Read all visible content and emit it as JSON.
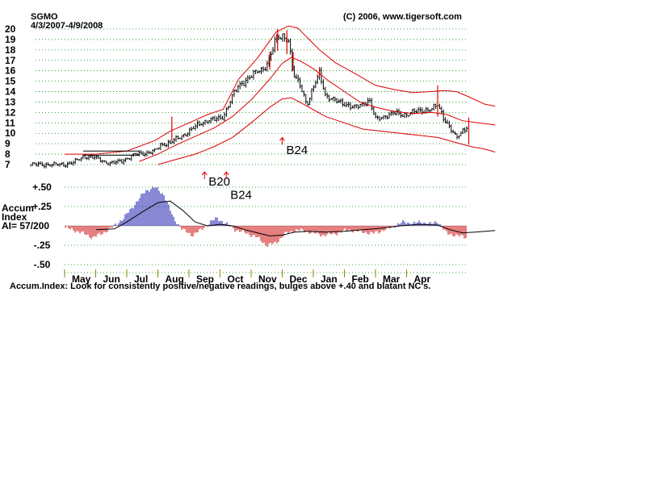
{
  "header": {
    "symbol": "SGMO",
    "date_range": "4/3/2007-4/9/2008",
    "copyright": "(C) 2006, www.tigersoft.com"
  },
  "chart_data": [
    {
      "type": "candlestick",
      "name_visible": false,
      "y_tick_labels": [
        "20",
        "19",
        "18",
        "17",
        "16",
        "15",
        "14",
        "13",
        "12",
        "11",
        "10",
        "9",
        "8",
        "7"
      ],
      "ylim": [
        7,
        20
      ],
      "x_tick_labels": [
        "May",
        "Jun",
        "Jul",
        "Aug",
        "Sep",
        "Oct",
        "Nov",
        "Dec",
        "Jan",
        "Feb",
        "Mar",
        "Apr"
      ],
      "grid": "dotted horizontal",
      "price_points": [
        {
          "m": 0.0,
          "v": 7.0
        },
        {
          "m": 0.3,
          "v": 7.2
        },
        {
          "m": 0.6,
          "v": 7.8
        },
        {
          "m": 0.9,
          "v": 7.7
        },
        {
          "m": 1.2,
          "v": 7.4
        },
        {
          "m": 1.5,
          "v": 7.1
        },
        {
          "m": 1.8,
          "v": 7.3
        },
        {
          "m": 2.0,
          "v": 7.6
        },
        {
          "m": 2.3,
          "v": 8.0
        },
        {
          "m": 2.6,
          "v": 8.1
        },
        {
          "m": 2.9,
          "v": 8.3
        },
        {
          "m": 3.1,
          "v": 8.9
        },
        {
          "m": 3.4,
          "v": 9.1
        },
        {
          "m": 3.7,
          "v": 9.6
        },
        {
          "m": 4.0,
          "v": 10.2
        },
        {
          "m": 4.3,
          "v": 10.8
        },
        {
          "m": 4.6,
          "v": 11.3
        },
        {
          "m": 4.9,
          "v": 11.3
        },
        {
          "m": 5.1,
          "v": 11.6
        },
        {
          "m": 5.4,
          "v": 13.6
        },
        {
          "m": 5.6,
          "v": 14.5
        },
        {
          "m": 5.9,
          "v": 15.3
        },
        {
          "m": 6.2,
          "v": 15.9
        },
        {
          "m": 6.4,
          "v": 16.2
        },
        {
          "m": 6.6,
          "v": 17.2
        },
        {
          "m": 6.8,
          "v": 19.0
        },
        {
          "m": 7.0,
          "v": 19.4
        },
        {
          "m": 7.2,
          "v": 19.0
        },
        {
          "m": 7.35,
          "v": 15.6
        },
        {
          "m": 7.6,
          "v": 14.5
        },
        {
          "m": 7.8,
          "v": 12.8
        },
        {
          "m": 8.0,
          "v": 14.3
        },
        {
          "m": 8.2,
          "v": 15.8
        },
        {
          "m": 8.4,
          "v": 13.6
        },
        {
          "m": 8.7,
          "v": 13.1
        },
        {
          "m": 9.0,
          "v": 12.9
        },
        {
          "m": 9.3,
          "v": 12.4
        },
        {
          "m": 9.5,
          "v": 12.7
        },
        {
          "m": 9.8,
          "v": 13.2
        },
        {
          "m": 10.0,
          "v": 11.3
        },
        {
          "m": 10.3,
          "v": 11.7
        },
        {
          "m": 10.6,
          "v": 11.9
        },
        {
          "m": 10.9,
          "v": 11.8
        },
        {
          "m": 11.2,
          "v": 12.0
        },
        {
          "m": 11.5,
          "v": 12.2
        },
        {
          "m": 11.8,
          "v": 12.3
        },
        {
          "m": 12.0,
          "v": 12.7
        },
        {
          "m": 12.2,
          "v": 11.5
        },
        {
          "m": 12.4,
          "v": 10.5
        },
        {
          "m": 12.6,
          "v": 9.5
        },
        {
          "m": 12.8,
          "v": 10.3
        },
        {
          "m": 13.0,
          "v": 10.8
        },
        {
          "m": 13.3,
          "v": 10.9
        },
        {
          "m": 13.6,
          "v": 10.7
        },
        {
          "m": 13.85,
          "v": 10.6
        }
      ],
      "upper_band": [
        {
          "m": 0.0,
          "v": 8.0
        },
        {
          "m": 1.0,
          "v": 8.0
        },
        {
          "m": 2.0,
          "v": 8.3
        },
        {
          "m": 2.9,
          "v": 9.3
        },
        {
          "m": 3.4,
          "v": 10.2
        },
        {
          "m": 4.0,
          "v": 11.0
        },
        {
          "m": 4.6,
          "v": 11.8
        },
        {
          "m": 5.1,
          "v": 12.3
        },
        {
          "m": 5.6,
          "v": 15.2
        },
        {
          "m": 6.2,
          "v": 17.2
        },
        {
          "m": 6.8,
          "v": 19.7
        },
        {
          "m": 7.2,
          "v": 20.3
        },
        {
          "m": 7.5,
          "v": 20.1
        },
        {
          "m": 7.8,
          "v": 19.2
        },
        {
          "m": 8.2,
          "v": 18.0
        },
        {
          "m": 8.7,
          "v": 16.8
        },
        {
          "m": 9.3,
          "v": 15.8
        },
        {
          "m": 10.0,
          "v": 14.6
        },
        {
          "m": 10.6,
          "v": 14.2
        },
        {
          "m": 11.2,
          "v": 13.9
        },
        {
          "m": 11.8,
          "v": 14.0
        },
        {
          "m": 12.2,
          "v": 14.1
        },
        {
          "m": 12.6,
          "v": 14.0
        },
        {
          "m": 13.0,
          "v": 13.5
        },
        {
          "m": 13.5,
          "v": 12.8
        },
        {
          "m": 13.85,
          "v": 12.6
        }
      ],
      "middle_band": [
        {
          "m": 2.4,
          "v": 7.3
        },
        {
          "m": 3.0,
          "v": 8.0
        },
        {
          "m": 3.6,
          "v": 8.9
        },
        {
          "m": 4.2,
          "v": 9.7
        },
        {
          "m": 4.8,
          "v": 10.5
        },
        {
          "m": 5.4,
          "v": 11.6
        },
        {
          "m": 6.0,
          "v": 13.2
        },
        {
          "m": 6.6,
          "v": 15.2
        },
        {
          "m": 7.0,
          "v": 16.7
        },
        {
          "m": 7.3,
          "v": 17.3
        },
        {
          "m": 7.6,
          "v": 16.9
        },
        {
          "m": 8.0,
          "v": 16.2
        },
        {
          "m": 8.5,
          "v": 15.0
        },
        {
          "m": 9.0,
          "v": 14.0
        },
        {
          "m": 9.5,
          "v": 13.0
        },
        {
          "m": 10.0,
          "v": 12.5
        },
        {
          "m": 10.6,
          "v": 12.1
        },
        {
          "m": 11.2,
          "v": 11.9
        },
        {
          "m": 11.8,
          "v": 12.0
        },
        {
          "m": 12.3,
          "v": 11.8
        },
        {
          "m": 12.8,
          "v": 11.2
        },
        {
          "m": 13.3,
          "v": 11.0
        },
        {
          "m": 13.85,
          "v": 10.8
        }
      ],
      "lower_band": [
        {
          "m": 3.0,
          "v": 7.0
        },
        {
          "m": 3.6,
          "v": 7.5
        },
        {
          "m": 4.2,
          "v": 8.0
        },
        {
          "m": 4.8,
          "v": 8.7
        },
        {
          "m": 5.4,
          "v": 9.6
        },
        {
          "m": 6.0,
          "v": 11.0
        },
        {
          "m": 6.6,
          "v": 12.5
        },
        {
          "m": 7.0,
          "v": 13.3
        },
        {
          "m": 7.3,
          "v": 13.4
        },
        {
          "m": 7.8,
          "v": 12.6
        },
        {
          "m": 8.4,
          "v": 11.6
        },
        {
          "m": 9.0,
          "v": 11.0
        },
        {
          "m": 9.6,
          "v": 10.4
        },
        {
          "m": 10.2,
          "v": 10.2
        },
        {
          "m": 10.8,
          "v": 10.0
        },
        {
          "m": 11.4,
          "v": 9.8
        },
        {
          "m": 12.0,
          "v": 9.6
        },
        {
          "m": 12.6,
          "v": 9.1
        },
        {
          "m": 13.1,
          "v": 8.7
        },
        {
          "m": 13.5,
          "v": 8.5
        },
        {
          "m": 13.85,
          "v": 8.2
        }
      ],
      "channel_upper": [
        {
          "m": 0.6,
          "v": 8.3
        },
        {
          "m": 2.4,
          "v": 8.3
        }
      ],
      "channel_lower": [
        {
          "m": 0.6,
          "v": 7.9
        },
        {
          "m": 2.4,
          "v": 7.9
        }
      ],
      "spikes": [
        {
          "m": 3.45,
          "low": 9.3,
          "high": 11.6
        },
        {
          "m": 6.6,
          "low": 16.1,
          "high": 17.8
        },
        {
          "m": 6.85,
          "low": 17.9,
          "high": 20.0
        },
        {
          "m": 7.15,
          "low": 17.6,
          "high": 19.9
        },
        {
          "m": 7.35,
          "low": 16.0,
          "high": 17.8
        },
        {
          "m": 8.2,
          "low": 15.4,
          "high": 16.3
        },
        {
          "m": 12.0,
          "low": 11.6,
          "high": 14.6
        },
        {
          "m": 13.0,
          "low": 8.9,
          "high": 11.5
        }
      ]
    },
    {
      "type": "bar",
      "name_visible": false,
      "y_tick_labels": [
        "+.50",
        "+.25",
        "-.25",
        "-.50"
      ],
      "ylim": [
        -0.5,
        0.5
      ],
      "label_lines": [
        "Accum",
        "Index",
        "AI= 57/200"
      ],
      "colors": {
        "positive": "#1111aa",
        "negative": "#cc0000",
        "line": "#000000"
      },
      "value_points": [
        {
          "m": 0.0,
          "v": -0.02
        },
        {
          "m": 0.5,
          "v": -0.08
        },
        {
          "m": 0.9,
          "v": -0.15
        },
        {
          "m": 1.2,
          "v": -0.1
        },
        {
          "m": 1.6,
          "v": 0.0
        },
        {
          "m": 1.9,
          "v": 0.1
        },
        {
          "m": 2.2,
          "v": 0.25
        },
        {
          "m": 2.6,
          "v": 0.45
        },
        {
          "m": 2.9,
          "v": 0.5
        },
        {
          "m": 3.2,
          "v": 0.4
        },
        {
          "m": 3.5,
          "v": 0.1
        },
        {
          "m": 3.8,
          "v": -0.05
        },
        {
          "m": 4.1,
          "v": -0.12
        },
        {
          "m": 4.4,
          "v": -0.05
        },
        {
          "m": 4.7,
          "v": 0.05
        },
        {
          "m": 4.9,
          "v": 0.1
        },
        {
          "m": 5.1,
          "v": 0.05
        },
        {
          "m": 5.5,
          "v": -0.05
        },
        {
          "m": 5.9,
          "v": -0.1
        },
        {
          "m": 6.2,
          "v": -0.15
        },
        {
          "m": 6.5,
          "v": -0.25
        },
        {
          "m": 6.8,
          "v": -0.22
        },
        {
          "m": 7.1,
          "v": -0.1
        },
        {
          "m": 7.5,
          "v": -0.05
        },
        {
          "m": 7.9,
          "v": -0.08
        },
        {
          "m": 8.3,
          "v": -0.12
        },
        {
          "m": 8.7,
          "v": -0.1
        },
        {
          "m": 9.1,
          "v": -0.05
        },
        {
          "m": 9.5,
          "v": -0.07
        },
        {
          "m": 9.9,
          "v": -0.1
        },
        {
          "m": 10.3,
          "v": -0.05
        },
        {
          "m": 10.6,
          "v": 0.0
        },
        {
          "m": 10.9,
          "v": 0.05
        },
        {
          "m": 11.2,
          "v": 0.03
        },
        {
          "m": 11.5,
          "v": 0.05
        },
        {
          "m": 11.8,
          "v": 0.02
        },
        {
          "m": 12.0,
          "v": 0.06
        },
        {
          "m": 12.3,
          "v": -0.1
        },
        {
          "m": 12.6,
          "v": -0.12
        },
        {
          "m": 12.9,
          "v": -0.15
        },
        {
          "m": 13.2,
          "v": -0.05
        },
        {
          "m": 13.5,
          "v": -0.04
        },
        {
          "m": 13.85,
          "v": -0.03
        }
      ],
      "moving_average": [
        {
          "m": 1.0,
          "v": -0.05
        },
        {
          "m": 1.6,
          "v": -0.04
        },
        {
          "m": 2.0,
          "v": 0.05
        },
        {
          "m": 2.5,
          "v": 0.18
        },
        {
          "m": 3.0,
          "v": 0.3
        },
        {
          "m": 3.4,
          "v": 0.32
        },
        {
          "m": 3.8,
          "v": 0.2
        },
        {
          "m": 4.2,
          "v": 0.05
        },
        {
          "m": 4.6,
          "v": 0.0
        },
        {
          "m": 5.0,
          "v": 0.02
        },
        {
          "m": 5.4,
          "v": 0.0
        },
        {
          "m": 5.8,
          "v": -0.05
        },
        {
          "m": 6.2,
          "v": -0.09
        },
        {
          "m": 6.6,
          "v": -0.13
        },
        {
          "m": 7.0,
          "v": -0.12
        },
        {
          "m": 7.4,
          "v": -0.08
        },
        {
          "m": 7.8,
          "v": -0.07
        },
        {
          "m": 8.4,
          "v": -0.08
        },
        {
          "m": 9.0,
          "v": -0.07
        },
        {
          "m": 9.6,
          "v": -0.05
        },
        {
          "m": 10.2,
          "v": -0.03
        },
        {
          "m": 10.8,
          "v": 0.0
        },
        {
          "m": 11.4,
          "v": 0.02
        },
        {
          "m": 12.0,
          "v": 0.01
        },
        {
          "m": 12.4,
          "v": -0.05
        },
        {
          "m": 12.8,
          "v": -0.09
        },
        {
          "m": 13.2,
          "v": -0.08
        },
        {
          "m": 13.85,
          "v": -0.06
        }
      ]
    }
  ],
  "signals": [
    {
      "label": "B24",
      "m": 7.0,
      "arrow_v": 9.6,
      "text_v": 8.0
    },
    {
      "label": "B20",
      "m": 4.5,
      "arrow_v": 6.3,
      "text_v": 5.0
    },
    {
      "label": "B24",
      "m": 5.2,
      "arrow_v": 6.3,
      "text_v": 3.7
    }
  ],
  "footer": {
    "note": "Accum.Index: Look for consistently positive/negative readings, bulges above +.40 and blatant NC's."
  }
}
